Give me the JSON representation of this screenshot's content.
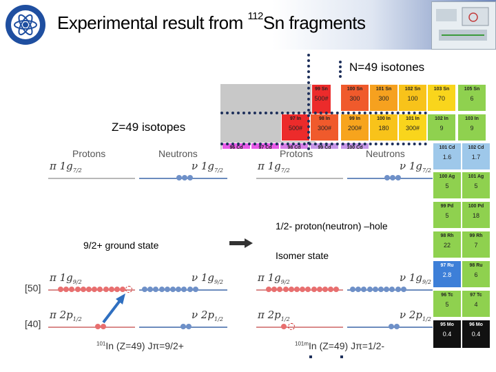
{
  "header": {
    "title_prefix": "Experimental result from ",
    "title_mass": "112",
    "title_suffix": "Sn fragments"
  },
  "annotations": {
    "n_label": "N=49 isotones",
    "z_label": "Z=49 isotopes",
    "hole_label": "1/2- proton(neutron) –hole",
    "ground_label": "9/2+  ground state",
    "isomer_label": "Isomer state"
  },
  "chart": {
    "cells": [
      {
        "name": "99 Sn",
        "value": "500#",
        "color": "#ec2b2b"
      },
      {
        "name": "100 Sn",
        "value": "300",
        "color": "#f05a2c"
      },
      {
        "name": "101 Sn",
        "value": "300",
        "color": "#f6a11f"
      },
      {
        "name": "102 Sn",
        "value": "100",
        "color": "#f8c31a"
      },
      {
        "name": "103 Sn",
        "value": "70",
        "color": "#f9d51c"
      },
      {
        "name": "105 Sn",
        "value": "6",
        "color": "#8fd14f"
      },
      {
        "name": "97 In",
        "value": "500#",
        "color": "#ec2b2b"
      },
      {
        "name": "98 In",
        "value": "300#",
        "color": "#f05a2c"
      },
      {
        "name": "99 In",
        "value": "200#",
        "color": "#f7a41d"
      },
      {
        "name": "100 In",
        "value": "180",
        "color": "#f8c31a"
      },
      {
        "name": "101 In",
        "value": "300#",
        "color": "#f9d51c"
      },
      {
        "name": "102 In",
        "value": "9",
        "color": "#8fd14f"
      },
      {
        "name": "103 In",
        "value": "9",
        "color": "#8fd14f"
      },
      {
        "name": "96 Cd",
        "value": "",
        "color": "#e85be8"
      },
      {
        "name": "97 Cd",
        "value": "",
        "color": "#e85be8"
      },
      {
        "name": "98 Cd",
        "value": "",
        "color": "#d77ee8"
      },
      {
        "name": "99 Cd",
        "value": "",
        "color": "#c796e8"
      },
      {
        "name": "100 Cd",
        "value": "",
        "color": "#c796e8"
      },
      {
        "name": "101 Cd",
        "value": "1.6",
        "color": "#9ec8ea"
      },
      {
        "name": "102 Cd",
        "value": "1.7",
        "color": "#9ec8ea"
      },
      {
        "name": "100 Ag",
        "value": "5",
        "color": "#8fd14f"
      },
      {
        "name": "101 Ag",
        "value": "5",
        "color": "#8fd14f"
      },
      {
        "name": "99 Pd",
        "value": "5",
        "color": "#8fd14f"
      },
      {
        "name": "100 Pd",
        "value": "18",
        "color": "#8fd14f"
      },
      {
        "name": "98 Rh",
        "value": "22",
        "color": "#8fd14f"
      },
      {
        "name": "99 Rh",
        "value": "7",
        "color": "#8fd14f"
      },
      {
        "name": "97 Ru",
        "value": "2.8",
        "color": "#3d7fd8"
      },
      {
        "name": "98 Ru",
        "value": "6",
        "color": "#8fd14f"
      },
      {
        "name": "96 Tc",
        "value": "5",
        "color": "#8fd14f"
      },
      {
        "name": "97 Tc",
        "value": "4",
        "color": "#8fd14f"
      },
      {
        "name": "95 Mo",
        "value": "0.4",
        "color": "#111111"
      },
      {
        "name": "96 Mo",
        "value": "0.4",
        "color": "#111111"
      }
    ]
  },
  "scheme": {
    "protons_label": "Protons",
    "neutrons_label": "Neutrons",
    "orb_pi_g72": "π 1g",
    "orb_nu_g72": "ν 1g",
    "sub_g72": "7/2",
    "orb_pi_g92": "π 1g",
    "orb_nu_g92": "ν 1g",
    "sub_g92": "9/2",
    "orb_pi_p12": "π 2p",
    "orb_nu_p12": "ν 2p",
    "sub_p12": "1/2",
    "magic_50": "[50]",
    "magic_40": "[40]",
    "ground_caption": "In (Z=49) Jπ=9/2+",
    "ground_mass": "101",
    "isomer_caption": "In (Z=49) Jπ=1/2-",
    "isomer_mass": "101",
    "isomer_sup": "m"
  }
}
